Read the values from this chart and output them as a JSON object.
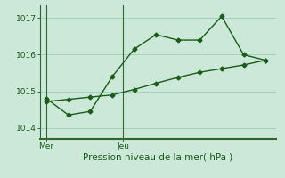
{
  "title": "",
  "xlabel": "Pression niveau de la mer( hPa )",
  "ylabel": "",
  "bg_color": "#cce8d8",
  "line_color": "#1a5c1a",
  "grid_color": "#a8cfc0",
  "axis_color": "#2d6a2d",
  "ylim": [
    1013.7,
    1017.35
  ],
  "xlim": [
    -0.3,
    10.5
  ],
  "x_values": [
    0,
    1,
    2,
    3,
    4,
    5,
    6,
    7,
    8,
    9,
    10
  ],
  "y_main": [
    1014.8,
    1014.35,
    1014.45,
    1015.4,
    1016.15,
    1016.55,
    1016.4,
    1016.4,
    1017.05,
    1016.0,
    1015.85
  ],
  "y_trend": [
    1014.72,
    1014.78,
    1014.84,
    1014.9,
    1015.05,
    1015.22,
    1015.38,
    1015.52,
    1015.62,
    1015.72,
    1015.85
  ],
  "xtick_positions": [
    0,
    3.5
  ],
  "xtick_labels": [
    "Mer",
    "Jeu"
  ],
  "vline_positions": [
    0,
    3.5
  ],
  "ytick_positions": [
    1014,
    1015,
    1016,
    1017
  ],
  "ytick_labels": [
    "1014",
    "1015",
    "1016",
    "1017"
  ],
  "marker_size": 2.5,
  "line_width": 1.0
}
